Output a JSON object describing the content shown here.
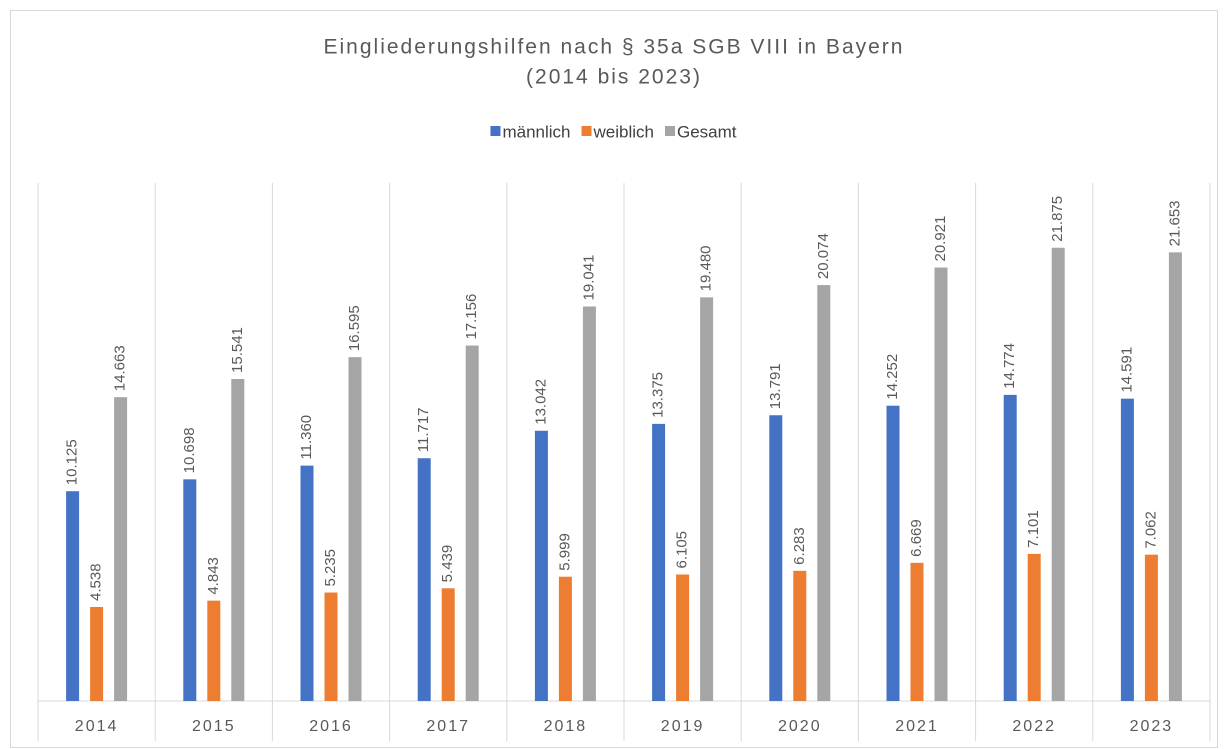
{
  "chart_data": {
    "type": "bar",
    "title": "Eingliederungshilfen nach § 35a SGB VIII in Bayern",
    "subtitle": "(2014 bis 2023)",
    "categories": [
      "2014",
      "2015",
      "2016",
      "2017",
      "2018",
      "2019",
      "2020",
      "2021",
      "2022",
      "2023"
    ],
    "series": [
      {
        "name": "männlich",
        "color": "#4472c4",
        "values": [
          10125,
          10698,
          11360,
          11717,
          13042,
          13375,
          13791,
          14252,
          14774,
          14591
        ],
        "value_labels": [
          "10.125",
          "10.698",
          "11.360",
          "11.717",
          "13.042",
          "13.375",
          "13.791",
          "14.252",
          "14.774",
          "14.591"
        ]
      },
      {
        "name": "weiblich",
        "color": "#ed7d31",
        "values": [
          4538,
          4843,
          5235,
          5439,
          5999,
          6105,
          6283,
          6669,
          7101,
          7062
        ],
        "value_labels": [
          "4.538",
          "4.843",
          "5.235",
          "5.439",
          "5.999",
          "6.105",
          "6.283",
          "6.669",
          "7.101",
          "7.062"
        ]
      },
      {
        "name": "Gesamt",
        "color": "#a5a5a5",
        "values": [
          14663,
          15541,
          16595,
          17156,
          19041,
          19480,
          20074,
          20921,
          21875,
          21653
        ],
        "value_labels": [
          "14.663",
          "15.541",
          "16.595",
          "17.156",
          "19.041",
          "19.480",
          "20.074",
          "20.921",
          "21.875",
          "21.653"
        ]
      }
    ],
    "ylim": [
      0,
      25000
    ],
    "legend": "top"
  }
}
